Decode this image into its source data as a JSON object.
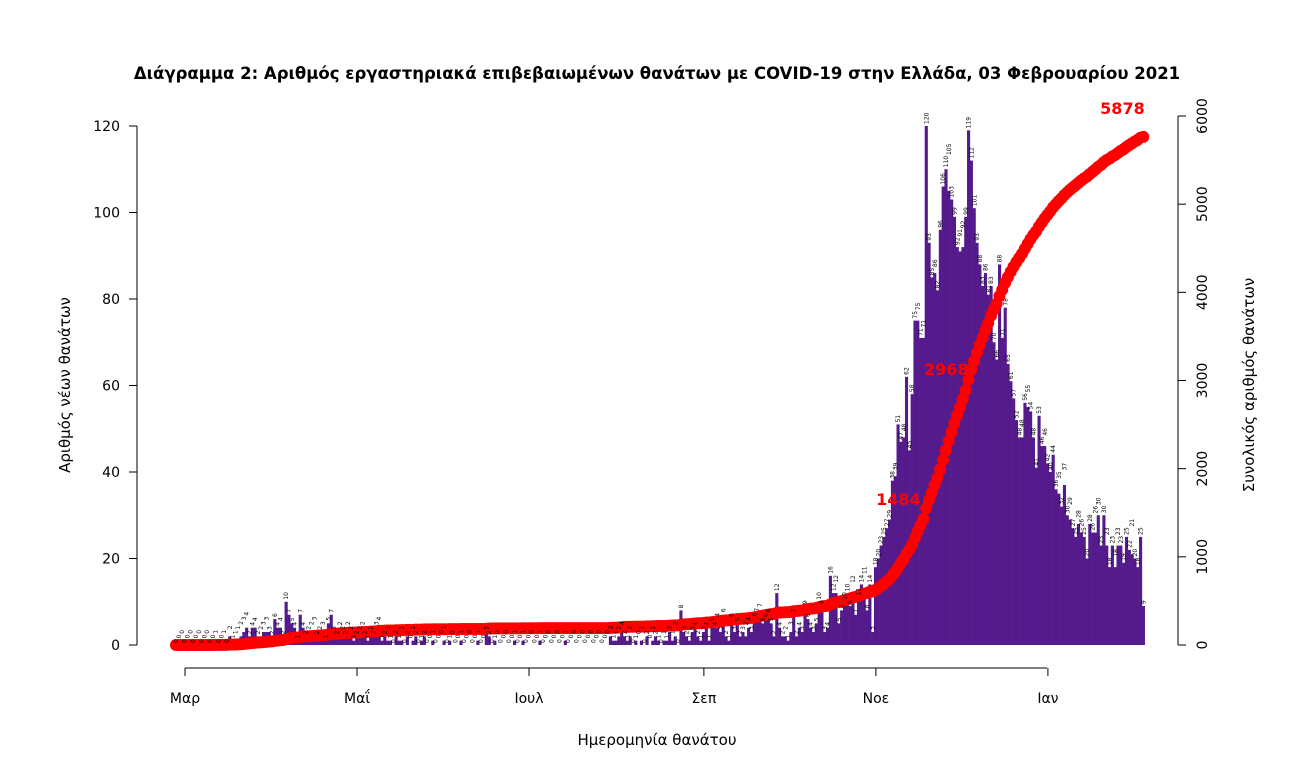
{
  "chart_data": {
    "type": "bar",
    "title": "Διάγραμμα 2: Αριθμός εργαστηριακά επιβεβαιωμένων θανάτων με COVID-19 στην Ελλάδα, 03 Φεβρουαρίου 2021",
    "xlabel": "Ημερομηνία θανάτου",
    "ylabel": "Αριθμός νέων θανάτων",
    "y2label": "Συνολικός αριθμός θανάτων",
    "start_date": "2020-02-26",
    "end_date": "2021-02-03",
    "ylim": [
      0,
      120
    ],
    "y2lim": [
      0,
      6000
    ],
    "yticks": [
      "0",
      "20",
      "40",
      "60",
      "80",
      "100",
      "120"
    ],
    "y2ticks": [
      "0",
      "1000",
      "2000",
      "3000",
      "4000",
      "5000",
      "6000"
    ],
    "xticks": [
      {
        "label": "Μαρ",
        "day": 4
      },
      {
        "label": "Μαΐ",
        "day": 65
      },
      {
        "label": "Ιουλ",
        "day": 126
      },
      {
        "label": "Σεπ",
        "day": 188
      },
      {
        "label": "Νοε",
        "day": 249
      },
      {
        "label": "Ιαν",
        "day": 310
      }
    ],
    "series": [
      {
        "name": "Νέοι θάνατοι",
        "type": "bar",
        "color": "#551a8b",
        "values": [
          0,
          0,
          0,
          0,
          0,
          0,
          0,
          0,
          0,
          0,
          0,
          0,
          0,
          0,
          1,
          0,
          0,
          1,
          0,
          2,
          1,
          1,
          1,
          2,
          3,
          4,
          2,
          4,
          4,
          2,
          2,
          3,
          3,
          3,
          2,
          6,
          4,
          4,
          2,
          10,
          7,
          5,
          4,
          1,
          7,
          4,
          2,
          2,
          2,
          3,
          2,
          2,
          3,
          1,
          5,
          7,
          3,
          2,
          2,
          2,
          2,
          2,
          2,
          1,
          2,
          2,
          2,
          2,
          1,
          2,
          2,
          3,
          4,
          1,
          2,
          1,
          1,
          0,
          2,
          1,
          1,
          0,
          2,
          0,
          1,
          2,
          0,
          1,
          2,
          0,
          0,
          1,
          0,
          0,
          0,
          1,
          0,
          1,
          0,
          0,
          0,
          1,
          0,
          0,
          0,
          0,
          0,
          1,
          0,
          0,
          3,
          2,
          0,
          1,
          0,
          0,
          0,
          0,
          0,
          0,
          1,
          0,
          0,
          1,
          0,
          0,
          0,
          0,
          0,
          1,
          0,
          0,
          0,
          0,
          0,
          0,
          0,
          0,
          1,
          0,
          0,
          0,
          0,
          0,
          0,
          0,
          0,
          0,
          0,
          0,
          0,
          0,
          0,
          0,
          2,
          1,
          1,
          2,
          4,
          2,
          1,
          2,
          0,
          1,
          0,
          1,
          0,
          2,
          0,
          1,
          2,
          1,
          0,
          1,
          1,
          3,
          1,
          2,
          0,
          8,
          3,
          2,
          1,
          3,
          4,
          2,
          1,
          3,
          4,
          1,
          5,
          4,
          4,
          3,
          6,
          2,
          1,
          6,
          3,
          5,
          2,
          3,
          2,
          4,
          3,
          6,
          7,
          7,
          5,
          6,
          6,
          5,
          2,
          12,
          4,
          2,
          2,
          1,
          3,
          7,
          2,
          4,
          3,
          9,
          6,
          4,
          3,
          5,
          10,
          9,
          3,
          4,
          16,
          12,
          12,
          5,
          8,
          10,
          10,
          9,
          12,
          7,
          11,
          14,
          11,
          8,
          14,
          3,
          18,
          20,
          23,
          25,
          27,
          29,
          38,
          39,
          51,
          47,
          48,
          62,
          45,
          58,
          75,
          75,
          71,
          71,
          120,
          93,
          85,
          86,
          82,
          96,
          106,
          110,
          105,
          103,
          99,
          92,
          91,
          92,
          99,
          119,
          112,
          101,
          93,
          88,
          83,
          86,
          81,
          83,
          70,
          66,
          88,
          71,
          78,
          65,
          61,
          57,
          52,
          48,
          48,
          56,
          55,
          54,
          48,
          41,
          53,
          46,
          46,
          42,
          40,
          44,
          36,
          35,
          32,
          37,
          30,
          29,
          27,
          25,
          28,
          26,
          25,
          20,
          28,
          26,
          26,
          30,
          23,
          30,
          23,
          18,
          23,
          18,
          23,
          23,
          19,
          25,
          22,
          21,
          20,
          18,
          25,
          9
        ]
      },
      {
        "name": "Συνολικοί θάνατοι",
        "type": "cumulative-points",
        "color": "#ff0000"
      }
    ],
    "cumulative_labels": [
      {
        "text": "1484",
        "day": 259
      },
      {
        "text": "2968",
        "day": 276
      },
      {
        "text": "5878",
        "day": 342
      }
    ]
  }
}
